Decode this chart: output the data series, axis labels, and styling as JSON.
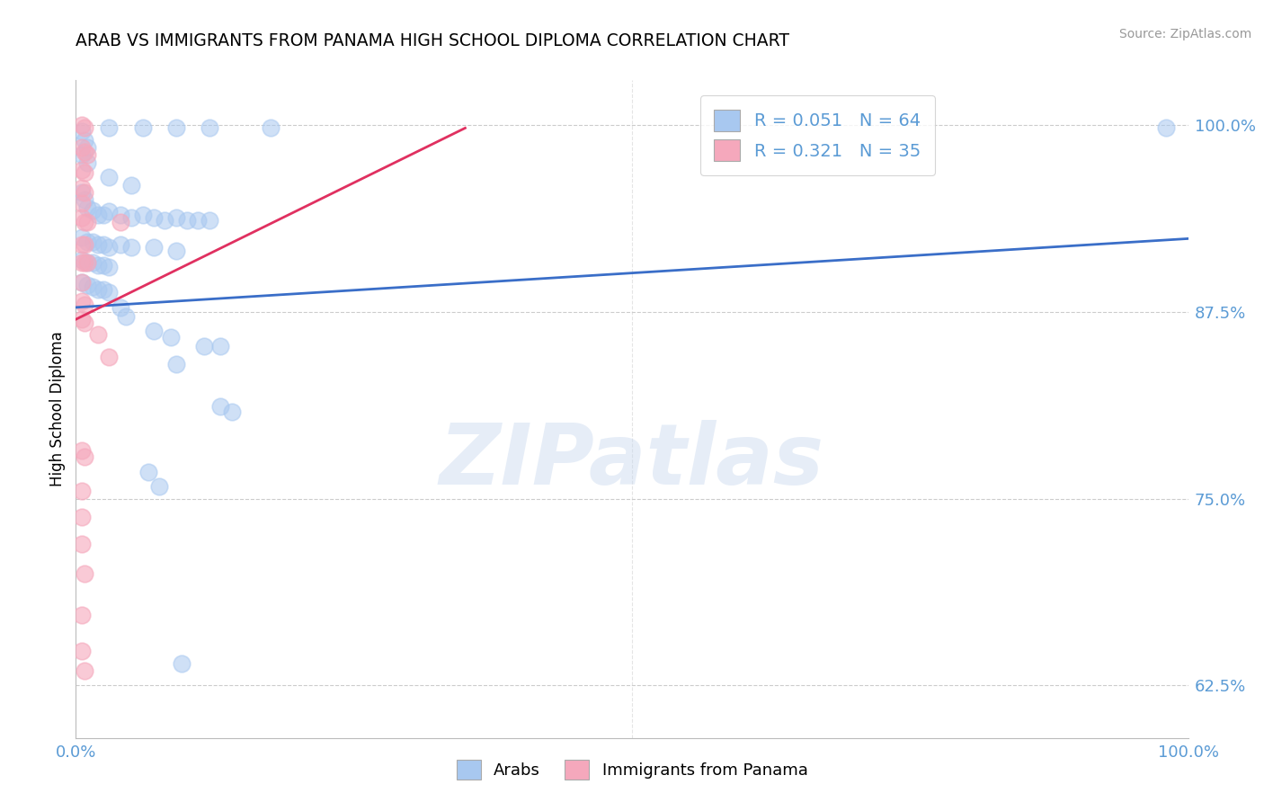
{
  "title": "ARAB VS IMMIGRANTS FROM PANAMA HIGH SCHOOL DIPLOMA CORRELATION CHART",
  "source": "Source: ZipAtlas.com",
  "ylabel": "High School Diploma",
  "xlim": [
    0.0,
    1.0
  ],
  "ylim": [
    0.59,
    1.03
  ],
  "yticks": [
    0.625,
    0.75,
    0.875,
    1.0
  ],
  "ytick_labels": [
    "62.5%",
    "75.0%",
    "87.5%",
    "100.0%"
  ],
  "blue_color": "#A8C8F0",
  "pink_color": "#F5A8BC",
  "blue_line_color": "#3A6EC8",
  "pink_line_color": "#E03060",
  "grid_color": "#CCCCCC",
  "watermark_text": "ZIPatlas",
  "blue_scatter": [
    [
      0.005,
      0.996
    ],
    [
      0.008,
      0.99
    ],
    [
      0.01,
      0.985
    ],
    [
      0.03,
      0.998
    ],
    [
      0.06,
      0.998
    ],
    [
      0.09,
      0.998
    ],
    [
      0.12,
      0.998
    ],
    [
      0.175,
      0.998
    ],
    [
      0.98,
      0.998
    ],
    [
      0.005,
      0.98
    ],
    [
      0.01,
      0.975
    ],
    [
      0.03,
      0.965
    ],
    [
      0.05,
      0.96
    ],
    [
      0.005,
      0.955
    ],
    [
      0.008,
      0.95
    ],
    [
      0.01,
      0.945
    ],
    [
      0.015,
      0.943
    ],
    [
      0.02,
      0.94
    ],
    [
      0.025,
      0.94
    ],
    [
      0.03,
      0.942
    ],
    [
      0.04,
      0.94
    ],
    [
      0.05,
      0.938
    ],
    [
      0.06,
      0.94
    ],
    [
      0.07,
      0.938
    ],
    [
      0.08,
      0.936
    ],
    [
      0.09,
      0.938
    ],
    [
      0.1,
      0.936
    ],
    [
      0.11,
      0.936
    ],
    [
      0.12,
      0.936
    ],
    [
      0.005,
      0.925
    ],
    [
      0.01,
      0.922
    ],
    [
      0.015,
      0.922
    ],
    [
      0.02,
      0.92
    ],
    [
      0.025,
      0.92
    ],
    [
      0.03,
      0.918
    ],
    [
      0.04,
      0.92
    ],
    [
      0.05,
      0.918
    ],
    [
      0.07,
      0.918
    ],
    [
      0.09,
      0.916
    ],
    [
      0.005,
      0.91
    ],
    [
      0.01,
      0.908
    ],
    [
      0.015,
      0.908
    ],
    [
      0.02,
      0.906
    ],
    [
      0.025,
      0.906
    ],
    [
      0.03,
      0.905
    ],
    [
      0.005,
      0.895
    ],
    [
      0.01,
      0.893
    ],
    [
      0.015,
      0.892
    ],
    [
      0.02,
      0.89
    ],
    [
      0.025,
      0.89
    ],
    [
      0.03,
      0.888
    ],
    [
      0.04,
      0.878
    ],
    [
      0.045,
      0.872
    ],
    [
      0.07,
      0.862
    ],
    [
      0.085,
      0.858
    ],
    [
      0.115,
      0.852
    ],
    [
      0.13,
      0.852
    ],
    [
      0.09,
      0.84
    ],
    [
      0.13,
      0.812
    ],
    [
      0.14,
      0.808
    ],
    [
      0.065,
      0.768
    ],
    [
      0.075,
      0.758
    ],
    [
      0.095,
      0.64
    ]
  ],
  "pink_scatter": [
    [
      0.005,
      1.0
    ],
    [
      0.008,
      0.998
    ],
    [
      0.005,
      0.985
    ],
    [
      0.008,
      0.982
    ],
    [
      0.01,
      0.98
    ],
    [
      0.005,
      0.97
    ],
    [
      0.008,
      0.968
    ],
    [
      0.005,
      0.958
    ],
    [
      0.008,
      0.955
    ],
    [
      0.005,
      0.948
    ],
    [
      0.005,
      0.938
    ],
    [
      0.008,
      0.935
    ],
    [
      0.01,
      0.935
    ],
    [
      0.04,
      0.935
    ],
    [
      0.005,
      0.92
    ],
    [
      0.008,
      0.92
    ],
    [
      0.005,
      0.908
    ],
    [
      0.008,
      0.908
    ],
    [
      0.01,
      0.908
    ],
    [
      0.005,
      0.895
    ],
    [
      0.005,
      0.882
    ],
    [
      0.008,
      0.88
    ],
    [
      0.005,
      0.87
    ],
    [
      0.008,
      0.868
    ],
    [
      0.02,
      0.86
    ],
    [
      0.03,
      0.845
    ],
    [
      0.005,
      0.782
    ],
    [
      0.008,
      0.778
    ],
    [
      0.005,
      0.755
    ],
    [
      0.005,
      0.738
    ],
    [
      0.005,
      0.72
    ],
    [
      0.008,
      0.7
    ],
    [
      0.005,
      0.672
    ],
    [
      0.005,
      0.648
    ],
    [
      0.008,
      0.635
    ]
  ],
  "blue_trend_x": [
    0.0,
    1.0
  ],
  "blue_trend_y": [
    0.878,
    0.924
  ],
  "pink_trend_x": [
    0.0,
    0.35
  ],
  "pink_trend_y": [
    0.87,
    0.998
  ]
}
